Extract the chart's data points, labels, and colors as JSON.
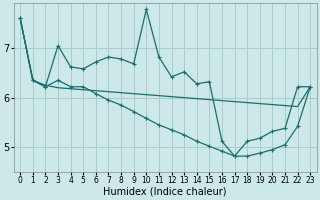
{
  "xlabel": "Humidex (Indice chaleur)",
  "bg_color": "#cce8e8",
  "grid_color": "#aacccc",
  "line_color": "#1a6e6e",
  "xlim": [
    -0.5,
    23.5
  ],
  "ylim": [
    4.5,
    7.9
  ],
  "yticks": [
    5,
    6,
    7
  ],
  "xticks": [
    0,
    1,
    2,
    3,
    4,
    5,
    6,
    7,
    8,
    9,
    10,
    11,
    12,
    13,
    14,
    15,
    16,
    17,
    18,
    19,
    20,
    21,
    22,
    23
  ],
  "series1_x": [
    0,
    1,
    2,
    3,
    4,
    5,
    6,
    7,
    8,
    9,
    10,
    11,
    12,
    13,
    14,
    15,
    16,
    17,
    18,
    19,
    20,
    21,
    22,
    23
  ],
  "series1": [
    7.6,
    6.35,
    6.22,
    7.05,
    6.62,
    6.58,
    6.72,
    6.82,
    6.78,
    6.68,
    7.78,
    6.82,
    6.42,
    6.52,
    6.28,
    6.32,
    5.12,
    4.82,
    5.12,
    5.18,
    5.32,
    5.38,
    6.22,
    6.22
  ],
  "series2": [
    7.6,
    6.35,
    6.25,
    6.2,
    6.18,
    6.16,
    6.14,
    6.12,
    6.1,
    6.08,
    6.06,
    6.04,
    6.02,
    6.0,
    5.98,
    5.96,
    5.94,
    5.92,
    5.9,
    5.88,
    5.86,
    5.84,
    5.82,
    6.22
  ],
  "series3": [
    7.6,
    6.35,
    6.22,
    6.35,
    6.22,
    6.22,
    6.08,
    5.95,
    5.85,
    5.72,
    5.58,
    5.45,
    5.35,
    5.25,
    5.12,
    5.02,
    4.92,
    4.82,
    4.82,
    4.88,
    4.95,
    5.05,
    5.42,
    6.22
  ],
  "xtick_fontsize": 5.5,
  "ytick_fontsize": 7,
  "xlabel_fontsize": 7
}
